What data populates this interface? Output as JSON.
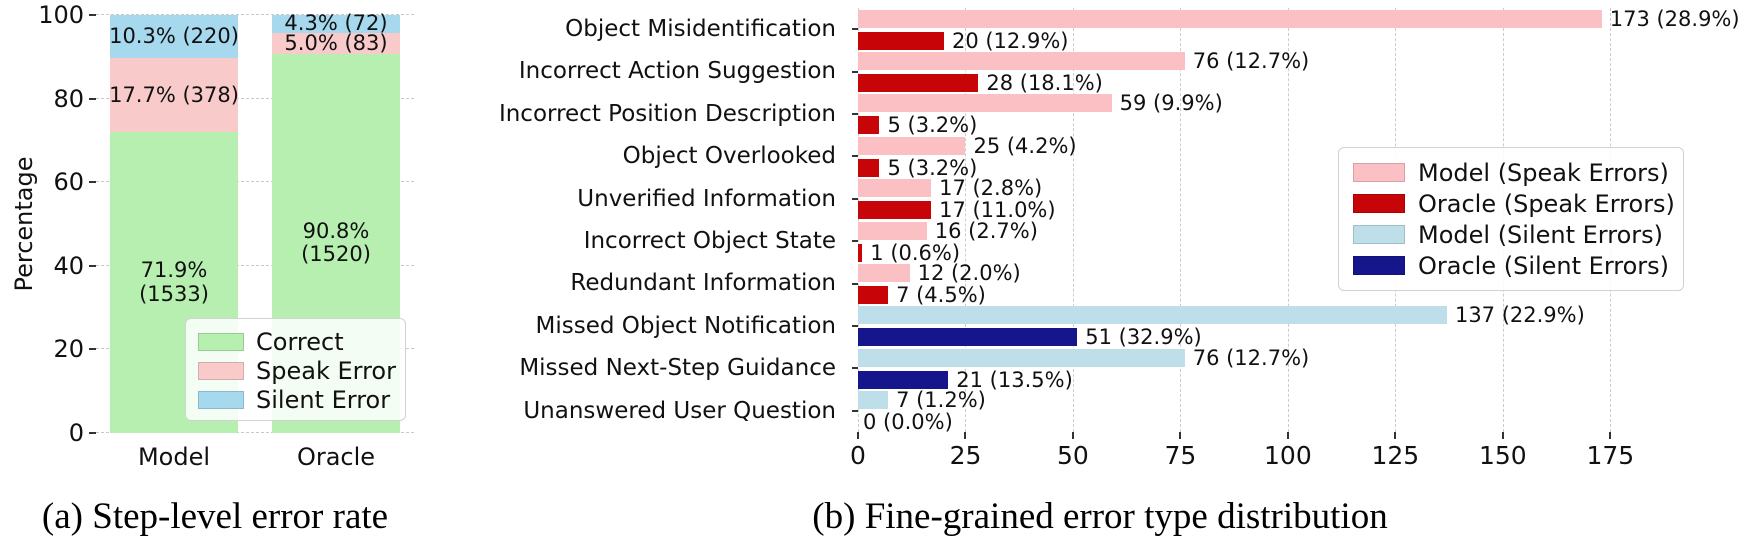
{
  "chart_data": [
    {
      "panel": "a",
      "type": "bar",
      "subtype": "stacked-vertical-percentage",
      "caption": "(a) Step-level error rate",
      "ylabel": "Percentage",
      "ylim": [
        0,
        100
      ],
      "yticks": [
        0,
        20,
        40,
        60,
        80,
        100
      ],
      "categories": [
        "Model",
        "Oracle"
      ],
      "grid": "dashed-horizontal",
      "series": [
        {
          "name": "Correct",
          "color": "#b7efb0",
          "values": [
            71.9,
            90.8
          ],
          "counts": [
            1533,
            1520
          ]
        },
        {
          "name": "Speak Error",
          "color": "#f9caca",
          "values": [
            17.7,
            5.0
          ],
          "counts": [
            378,
            83
          ]
        },
        {
          "name": "Silent Error",
          "color": "#a6d8ee",
          "values": [
            10.3,
            4.3
          ],
          "counts": [
            220,
            72
          ]
        }
      ],
      "bar_labels": [
        [
          [
            "71.9%",
            "(1533)"
          ],
          [
            "17.7% (378)"
          ],
          [
            "10.3% (220)"
          ]
        ],
        [
          [
            "90.8%",
            "(1520)"
          ],
          [
            "5.0% (83)"
          ],
          [
            "4.3% (72)"
          ]
        ]
      ],
      "legend": {
        "position": "lower right",
        "entries": [
          "Correct",
          "Speak Error",
          "Silent Error"
        ]
      }
    },
    {
      "panel": "b",
      "type": "bar",
      "subtype": "grouped-horizontal",
      "caption": "(b) Fine-grained error type distribution",
      "xlim": [
        0,
        194
      ],
      "xticks": [
        0,
        25,
        50,
        75,
        100,
        125,
        150,
        175
      ],
      "grid": "dashed-vertical",
      "bar_colors": {
        "model_speak": "#fbc0c3",
        "oracle_speak": "#c70408",
        "model_silent": "#bedfea",
        "oracle_silent": "#16168c"
      },
      "legend": {
        "position": "upper right",
        "entries": [
          {
            "name": "Model (Speak Errors)",
            "color_key": "model_speak"
          },
          {
            "name": "Oracle (Speak Errors)",
            "color_key": "oracle_speak"
          },
          {
            "name": "Model (Silent Errors)",
            "color_key": "model_silent"
          },
          {
            "name": "Oracle (Silent Errors)",
            "color_key": "oracle_silent"
          }
        ]
      },
      "rows": [
        {
          "category": "Object Misidentification",
          "error_mode": "speak",
          "model": {
            "value": 173,
            "label": "173 (28.9%)"
          },
          "oracle": {
            "value": 20,
            "label": "20 (12.9%)"
          }
        },
        {
          "category": "Incorrect Action Suggestion",
          "error_mode": "speak",
          "model": {
            "value": 76,
            "label": "76 (12.7%)"
          },
          "oracle": {
            "value": 28,
            "label": "28 (18.1%)"
          }
        },
        {
          "category": "Incorrect Position Description",
          "error_mode": "speak",
          "model": {
            "value": 59,
            "label": "59 (9.9%)"
          },
          "oracle": {
            "value": 5,
            "label": "5 (3.2%)"
          }
        },
        {
          "category": "Object Overlooked",
          "error_mode": "speak",
          "model": {
            "value": 25,
            "label": "25 (4.2%)"
          },
          "oracle": {
            "value": 5,
            "label": "5 (3.2%)"
          }
        },
        {
          "category": "Unverified Information",
          "error_mode": "speak",
          "model": {
            "value": 17,
            "label": "17 (2.8%)"
          },
          "oracle": {
            "value": 17,
            "label": "17 (11.0%)"
          }
        },
        {
          "category": "Incorrect Object State",
          "error_mode": "speak",
          "model": {
            "value": 16,
            "label": "16 (2.7%)"
          },
          "oracle": {
            "value": 1,
            "label": "1 (0.6%)"
          }
        },
        {
          "category": "Redundant Information",
          "error_mode": "speak",
          "model": {
            "value": 12,
            "label": "12 (2.0%)"
          },
          "oracle": {
            "value": 7,
            "label": "7 (4.5%)"
          }
        },
        {
          "category": "Missed Object Notification",
          "error_mode": "silent",
          "model": {
            "value": 137,
            "label": "137 (22.9%)"
          },
          "oracle": {
            "value": 51,
            "label": "51 (32.9%)"
          }
        },
        {
          "category": "Missed Next-Step Guidance",
          "error_mode": "silent",
          "model": {
            "value": 76,
            "label": "76 (12.7%)"
          },
          "oracle": {
            "value": 21,
            "label": "21 (13.5%)"
          }
        },
        {
          "category": "Unanswered User Question",
          "error_mode": "silent",
          "model": {
            "value": 7,
            "label": "7 (1.2%)"
          },
          "oracle": {
            "value": 0,
            "label": "0 (0.0%)"
          }
        }
      ]
    }
  ]
}
